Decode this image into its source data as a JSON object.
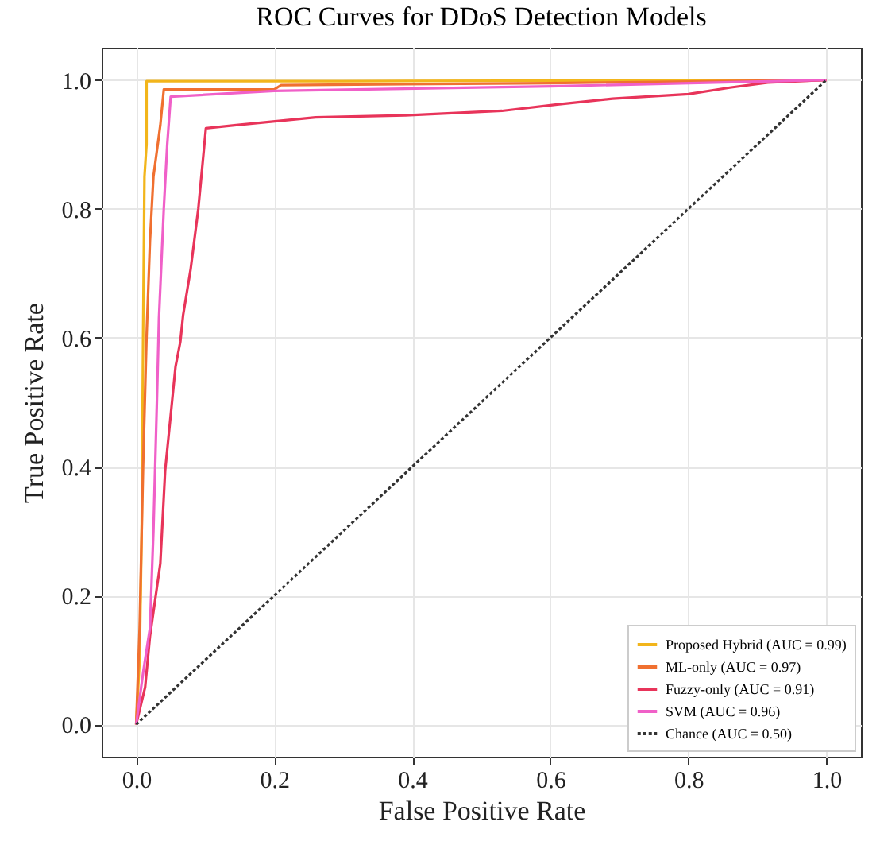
{
  "chart_data": {
    "type": "line",
    "title": "ROC Curves for DDoS Detection Models",
    "xlabel": "False Positive Rate",
    "ylabel": "True Positive Rate",
    "xlim": [
      -0.05,
      1.05
    ],
    "ylim": [
      -0.05,
      1.05
    ],
    "xticks": [
      {
        "value": 0,
        "label": "0.0"
      },
      0.2,
      0.4,
      0.6,
      0.8,
      {
        "value": 1,
        "label": "1.0"
      }
    ],
    "yticks": [
      {
        "value": 0,
        "label": "0.0"
      },
      0.2,
      0.4,
      0.6,
      0.8,
      {
        "value": 1,
        "label": "1.0"
      }
    ],
    "grid": true,
    "legend": "bottom right",
    "series": [
      {
        "name": "Proposed Hybrid (AUC = 0.99)",
        "color": "#f2b51b",
        "x": [
          0,
          0.005,
          0.008,
          0.01,
          0.012,
          0.015,
          0.015,
          0.3,
          1
        ],
        "values": [
          0,
          0.1,
          0.3,
          0.6,
          0.85,
          0.9,
          0.998,
          0.998,
          1
        ]
      },
      {
        "name": "ML-only (AUC = 0.97)",
        "color": "#f07030",
        "x": [
          0,
          0.005,
          0.01,
          0.015,
          0.02,
          0.025,
          0.03,
          0.035,
          0.04,
          0.2,
          0.21,
          0.6,
          1
        ],
        "values": [
          0,
          0.15,
          0.4,
          0.6,
          0.75,
          0.85,
          0.89,
          0.93,
          0.985,
          0.985,
          0.992,
          0.995,
          1
        ]
      },
      {
        "name": "Fuzzy-only (AUC = 0.91)",
        "color": "#e8345a",
        "x": [
          0,
          0.013,
          0.02,
          0.035,
          0.042,
          0.057,
          0.064,
          0.068,
          0.079,
          0.09,
          0.101,
          0.145,
          0.26,
          0.39,
          0.53,
          0.61,
          0.69,
          0.8,
          0.86,
          0.915,
          1
        ],
        "values": [
          0,
          0.058,
          0.137,
          0.25,
          0.394,
          0.555,
          0.594,
          0.635,
          0.707,
          0.8,
          0.925,
          0.93,
          0.942,
          0.945,
          0.952,
          0.962,
          0.971,
          0.978,
          0.988,
          0.996,
          1
        ]
      },
      {
        "name": "SVM (AUC = 0.96)",
        "color": "#f060c8",
        "x": [
          0,
          0.01,
          0.02,
          0.025,
          0.03,
          0.033,
          0.04,
          0.045,
          0.05,
          0.2,
          0.37,
          0.6,
          1
        ],
        "values": [
          0,
          0.08,
          0.15,
          0.3,
          0.5,
          0.63,
          0.8,
          0.9,
          0.974,
          0.983,
          0.986,
          0.99,
          1
        ]
      },
      {
        "name": "Chance (AUC = 0.50)",
        "color": "#333333",
        "line_style": "dashed",
        "x": [
          0,
          1
        ],
        "values": [
          0,
          1
        ]
      }
    ]
  }
}
